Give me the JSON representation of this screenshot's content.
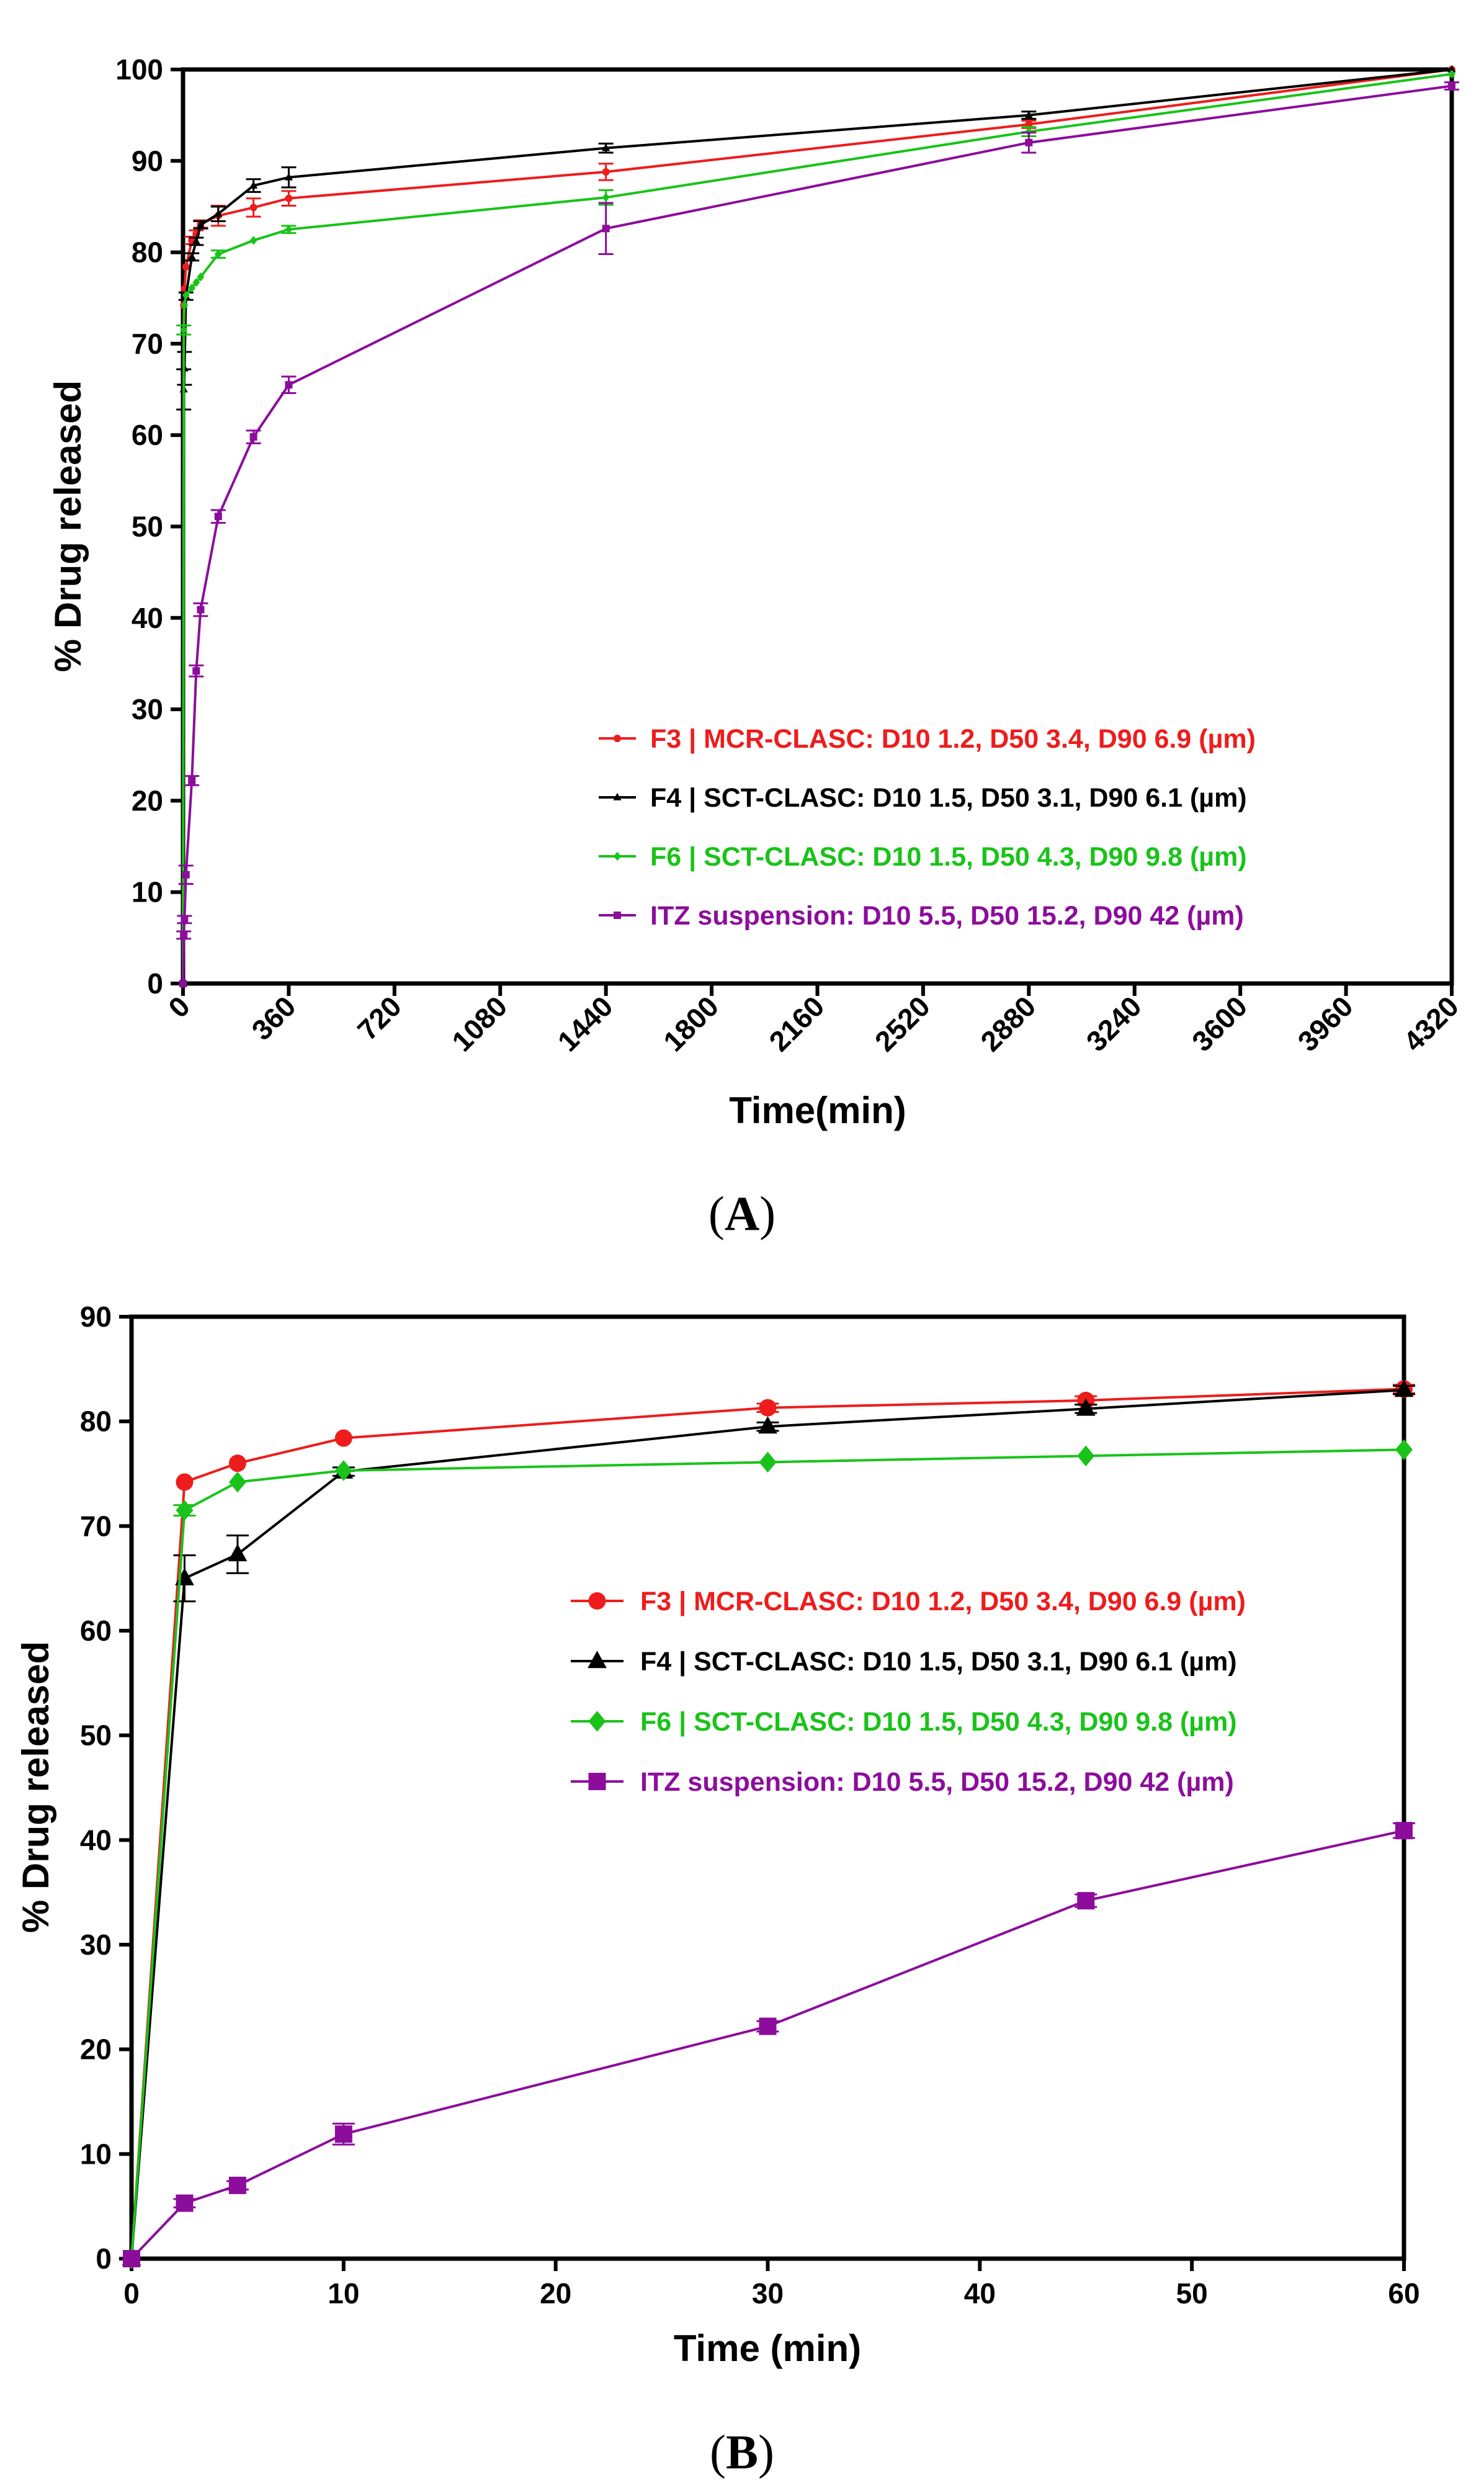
{
  "chart_data": [
    {
      "type": "line",
      "panel_label": "(A)",
      "xlabel": "Time(min)",
      "ylabel": "% Drug released",
      "xlim": [
        0,
        4320
      ],
      "ylim": [
        0,
        100
      ],
      "xticks": [
        0,
        360,
        720,
        1080,
        1440,
        1800,
        2160,
        2520,
        2880,
        3240,
        3600,
        3960,
        4320
      ],
      "yticks": [
        0,
        10,
        20,
        30,
        40,
        50,
        60,
        70,
        80,
        90,
        100
      ],
      "x_tick_rotation": -45,
      "grid": false,
      "legend_position": "bottom-right",
      "series": [
        {
          "name": "F3 | MCR-CLASC: D10 1.2, D50 3.4, D90 6.9 (µm)",
          "color": "#ee1c1c",
          "marker": "circle",
          "points": [
            [
              0,
              0
            ],
            [
              2.5,
              74.2
            ],
            [
              5,
              76
            ],
            [
              10,
              78.4
            ],
            [
              30,
              81.3
            ],
            [
              45,
              82
            ],
            [
              60,
              83.1
            ],
            [
              120,
              84
            ],
            [
              240,
              84.9
            ],
            [
              360,
              85.9
            ],
            [
              1440,
              88.8
            ],
            [
              2880,
              94
            ],
            [
              4320,
              100
            ]
          ],
          "errors": [
            0,
            0.3,
            0.3,
            0.3,
            0.4,
            0.4,
            0.4,
            1.1,
            1,
            0.8,
            0.9,
            0.4,
            0.3
          ]
        },
        {
          "name": "F4 | SCT-CLASC: D10 1.5, D50 3.1, D90 6.1 (µm)",
          "color": "#000000",
          "marker": "triangle",
          "points": [
            [
              0,
              0
            ],
            [
              2.5,
              65
            ],
            [
              5,
              67.3
            ],
            [
              10,
              75.2
            ],
            [
              30,
              79.5
            ],
            [
              45,
              81.2
            ],
            [
              60,
              83
            ],
            [
              120,
              84.2
            ],
            [
              240,
              87.3
            ],
            [
              360,
              88.2
            ],
            [
              1440,
              91.4
            ],
            [
              2880,
              95
            ],
            [
              4320,
              100
            ]
          ],
          "errors": [
            0,
            2.2,
            1.8,
            0.4,
            0.4,
            0.4,
            0.4,
            0.8,
            0.7,
            1.1,
            0.5,
            0.4,
            0.3
          ]
        },
        {
          "name": "F6 | SCT-CLASC: D10 1.5, D50 4.3, D90 9.8 (µm)",
          "color": "#19c319",
          "marker": "diamond",
          "points": [
            [
              0,
              0
            ],
            [
              2.5,
              71.5
            ],
            [
              5,
              74.2
            ],
            [
              10,
              75.3
            ],
            [
              30,
              76.1
            ],
            [
              45,
              76.7
            ],
            [
              60,
              77.3
            ],
            [
              120,
              79.8
            ],
            [
              240,
              81.3
            ],
            [
              360,
              82.5
            ],
            [
              1440,
              86
            ],
            [
              2880,
              93.2
            ],
            [
              4320,
              99.5
            ]
          ],
          "errors": [
            0,
            0.5,
            0.3,
            0.3,
            0.3,
            0.3,
            0.3,
            0.4,
            0.3,
            0.4,
            0.8,
            0.5,
            0.3
          ]
        },
        {
          "name": "ITZ suspension: D10 5.5, D50 15.2, D90 42 (µm)",
          "color": "#8c0d9c",
          "marker": "square",
          "points": [
            [
              0,
              0
            ],
            [
              2.5,
              5.3
            ],
            [
              5,
              7
            ],
            [
              10,
              11.9
            ],
            [
              30,
              22.2
            ],
            [
              45,
              34.2
            ],
            [
              60,
              40.9
            ],
            [
              120,
              51.1
            ],
            [
              240,
              59.8
            ],
            [
              360,
              65.5
            ],
            [
              1440,
              82.6
            ],
            [
              2880,
              92
            ],
            [
              4320,
              98.2
            ]
          ],
          "errors": [
            0,
            0.4,
            0.4,
            1,
            0.5,
            0.6,
            0.7,
            0.7,
            0.7,
            0.9,
            2.8,
            1.1,
            0.4
          ]
        }
      ]
    },
    {
      "type": "line",
      "panel_label": "(B)",
      "xlabel": "Time (min)",
      "ylabel": "% Drug released",
      "xlim": [
        0,
        60
      ],
      "ylim": [
        0,
        90
      ],
      "xticks": [
        0,
        10,
        20,
        30,
        40,
        50,
        60
      ],
      "yticks": [
        0,
        10,
        20,
        30,
        40,
        50,
        60,
        70,
        80,
        90
      ],
      "grid": false,
      "legend_position": "center-right",
      "series": [
        {
          "name": "F3 | MCR-CLASC: D10 1.2, D50 3.4, D90 6.9 (µm)",
          "color": "#ee1c1c",
          "marker": "circle",
          "points": [
            [
              0,
              0
            ],
            [
              2.5,
              74.2
            ],
            [
              5,
              76
            ],
            [
              10,
              78.4
            ],
            [
              30,
              81.3
            ],
            [
              45,
              82
            ],
            [
              60,
              83.1
            ]
          ],
          "errors": [
            0,
            0.3,
            0.3,
            0.3,
            0.4,
            0.4,
            0.4
          ]
        },
        {
          "name": "F4 | SCT-CLASC: D10 1.5, D50 3.1, D90 6.1 (µm)",
          "color": "#000000",
          "marker": "triangle",
          "points": [
            [
              0,
              0
            ],
            [
              2.5,
              65
            ],
            [
              5,
              67.3
            ],
            [
              10,
              75.2
            ],
            [
              30,
              79.5
            ],
            [
              45,
              81.2
            ],
            [
              60,
              83
            ]
          ],
          "errors": [
            0,
            2.2,
            1.8,
            0.4,
            0.4,
            0.4,
            0.4
          ]
        },
        {
          "name": "F6 | SCT-CLASC: D10 1.5, D50 4.3, D90 9.8 (µm)",
          "color": "#19c319",
          "marker": "diamond",
          "points": [
            [
              0,
              0
            ],
            [
              2.5,
              71.5
            ],
            [
              5,
              74.2
            ],
            [
              10,
              75.3
            ],
            [
              30,
              76.1
            ],
            [
              45,
              76.7
            ],
            [
              60,
              77.3
            ]
          ],
          "errors": [
            0,
            0.5,
            0.3,
            0.3,
            0.3,
            0.3,
            0.3
          ]
        },
        {
          "name": "ITZ suspension: D10 5.5, D50 15.2, D90 42 (µm)",
          "color": "#8c0d9c",
          "marker": "square",
          "points": [
            [
              0,
              0
            ],
            [
              2.5,
              5.3
            ],
            [
              5,
              7
            ],
            [
              10,
              11.9
            ],
            [
              30,
              22.2
            ],
            [
              45,
              34.2
            ],
            [
              60,
              40.9
            ]
          ],
          "errors": [
            0,
            0.4,
            0.4,
            1,
            0.5,
            0.6,
            0.7
          ]
        }
      ]
    }
  ]
}
